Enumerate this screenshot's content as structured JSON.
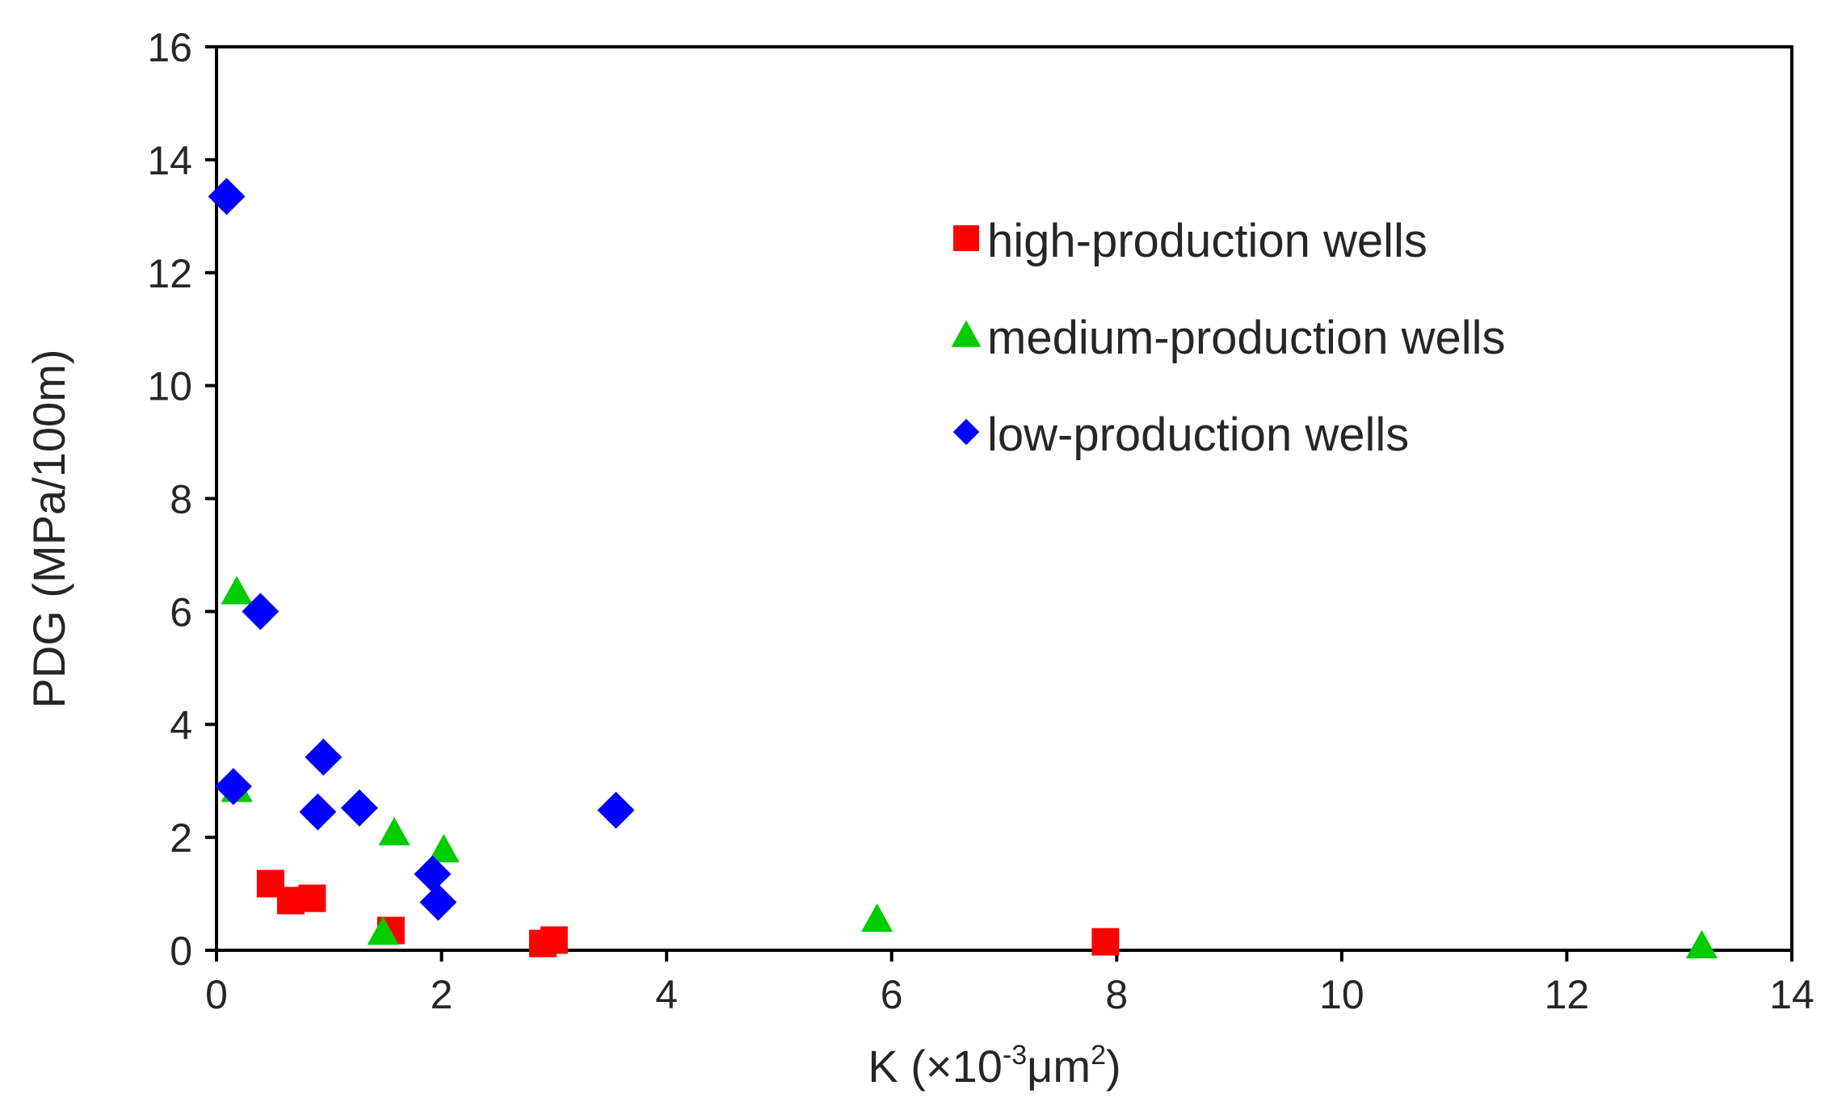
{
  "chart_data": {
    "type": "scatter",
    "title": "",
    "xlabel": {
      "base": "K (×10",
      "exp1": "-3",
      "mid": "μm",
      "exp2": "2",
      "end": ")"
    },
    "ylabel": "PDG (MPa/100m)",
    "xlim": [
      0,
      14
    ],
    "ylim": [
      0,
      16
    ],
    "xticks": [
      0,
      2,
      4,
      6,
      8,
      10,
      12,
      14
    ],
    "yticks": [
      0,
      2,
      4,
      6,
      8,
      10,
      12,
      14,
      16
    ],
    "grid": false,
    "legend_position": "top-right",
    "series": [
      {
        "name": "high-production wells",
        "marker": "square",
        "color": "#ff0000",
        "points": [
          [
            0.48,
            1.18
          ],
          [
            0.66,
            0.88
          ],
          [
            0.85,
            0.92
          ],
          [
            1.55,
            0.35
          ],
          [
            2.9,
            0.12
          ],
          [
            3.0,
            0.18
          ],
          [
            7.9,
            0.15
          ]
        ]
      },
      {
        "name": "medium-production wells",
        "marker": "triangle",
        "color": "#00cc00",
        "points": [
          [
            0.18,
            6.35
          ],
          [
            0.18,
            2.85
          ],
          [
            1.48,
            0.32
          ],
          [
            1.58,
            2.08
          ],
          [
            2.02,
            1.78
          ],
          [
            5.87,
            0.55
          ],
          [
            13.2,
            0.08
          ]
        ]
      },
      {
        "name": "low-production wells",
        "marker": "diamond",
        "color": "#0000ff",
        "points": [
          [
            0.09,
            13.35
          ],
          [
            0.39,
            6.0
          ],
          [
            0.15,
            2.9
          ],
          [
            0.95,
            3.42
          ],
          [
            0.9,
            2.45
          ],
          [
            1.27,
            2.52
          ],
          [
            1.92,
            1.35
          ],
          [
            1.97,
            0.85
          ],
          [
            3.55,
            2.48
          ]
        ]
      }
    ]
  }
}
